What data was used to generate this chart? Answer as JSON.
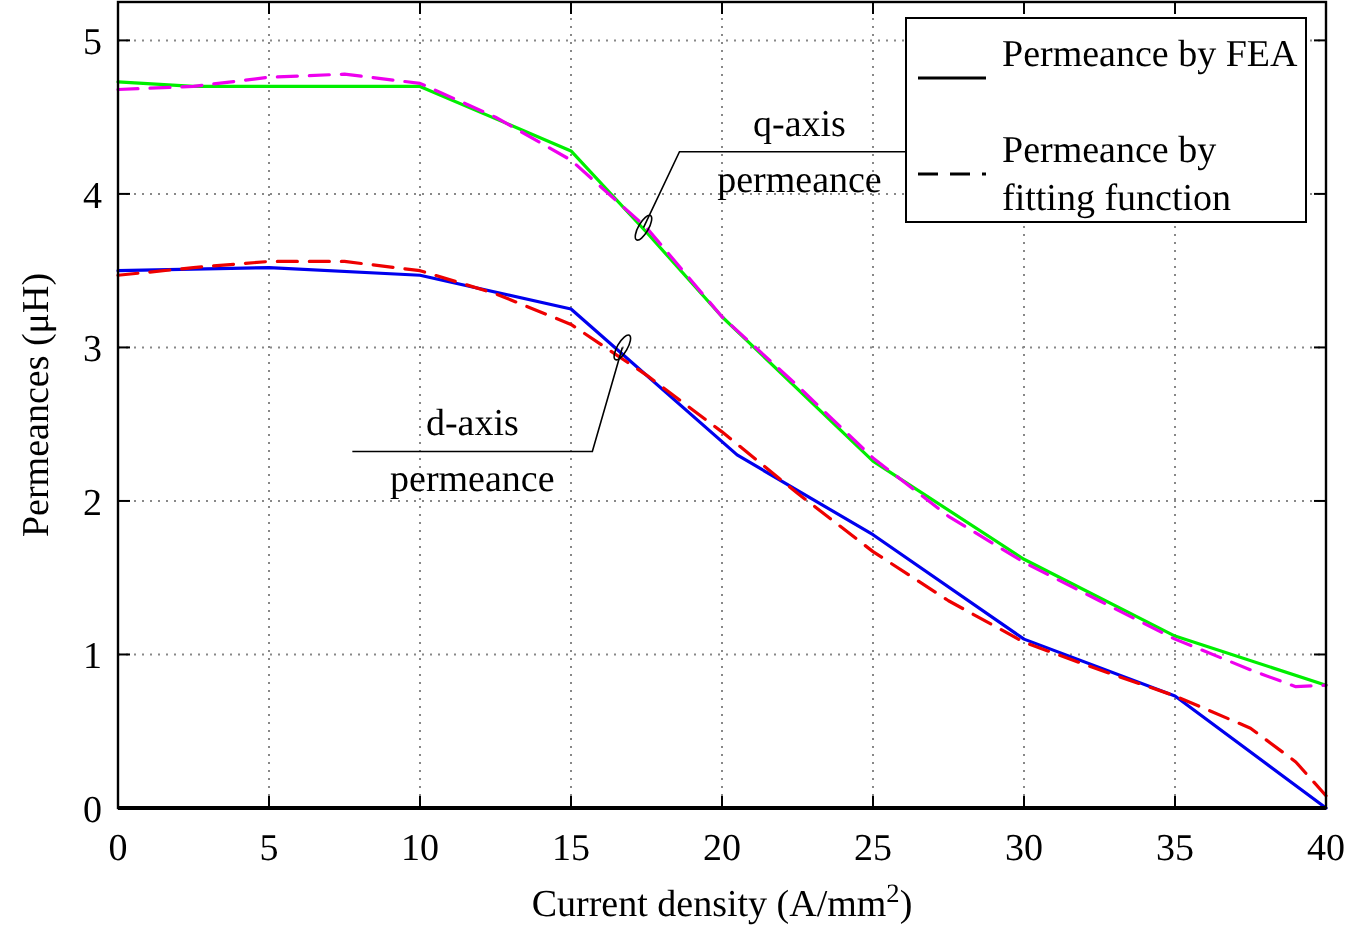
{
  "chart_data": {
    "type": "line",
    "xlabel": "Current density (A/mm$^{2}$)",
    "ylabel": "Permeances (μH)",
    "xlim": [
      0,
      40
    ],
    "xticks": [
      0,
      5,
      10,
      15,
      20,
      25,
      30,
      35,
      40
    ],
    "ylim": [
      0,
      5.25
    ],
    "yticks": [
      0,
      1,
      2,
      3,
      4,
      5
    ],
    "grid": true,
    "series": [
      {
        "color": "#00ee00",
        "line_style": "solid",
        "x": [
          0,
          2.5,
          10,
          15,
          17.5,
          20,
          25,
          30,
          35,
          40
        ],
        "values": [
          4.73,
          4.7,
          4.7,
          4.28,
          3.75,
          3.2,
          2.26,
          1.62,
          1.12,
          0.8
        ]
      },
      {
        "color": "#ee00ee",
        "line_style": "dashed",
        "x": [
          0,
          2.5,
          5,
          7.5,
          10,
          12.5,
          15,
          17.5,
          20,
          22.5,
          25,
          27.5,
          30,
          32.5,
          35,
          37.5,
          39,
          40
        ],
        "values": [
          4.68,
          4.7,
          4.76,
          4.78,
          4.72,
          4.5,
          4.22,
          3.78,
          3.2,
          2.75,
          2.28,
          1.9,
          1.6,
          1.35,
          1.1,
          0.9,
          0.79,
          0.8
        ]
      },
      {
        "color": "#0000ee",
        "line_style": "solid",
        "x": [
          0,
          5,
          10,
          15,
          20.5,
          25,
          30,
          35,
          40
        ],
        "values": [
          3.5,
          3.52,
          3.47,
          3.25,
          2.3,
          1.78,
          1.1,
          0.73,
          0
        ]
      },
      {
        "color": "#ee0000",
        "line_style": "dashed",
        "x": [
          0,
          2.5,
          5,
          7.5,
          10,
          12.5,
          15,
          17.5,
          20,
          22.5,
          25,
          27.5,
          30,
          32.5,
          35,
          37.5,
          39,
          40
        ],
        "values": [
          3.47,
          3.52,
          3.56,
          3.56,
          3.5,
          3.35,
          3.15,
          2.82,
          2.45,
          2.05,
          1.67,
          1.35,
          1.08,
          0.9,
          0.73,
          0.52,
          0.3,
          0.08
        ]
      }
    ],
    "annotations": [
      "Permeance by FEA",
      "Permeance by fitting function",
      {
        "text": "q-axis permeance",
        "x": 17.4,
        "y": 3.78
      },
      {
        "text": "d-axis permeance",
        "x": 16.7,
        "y": 3.0
      }
    ]
  }
}
